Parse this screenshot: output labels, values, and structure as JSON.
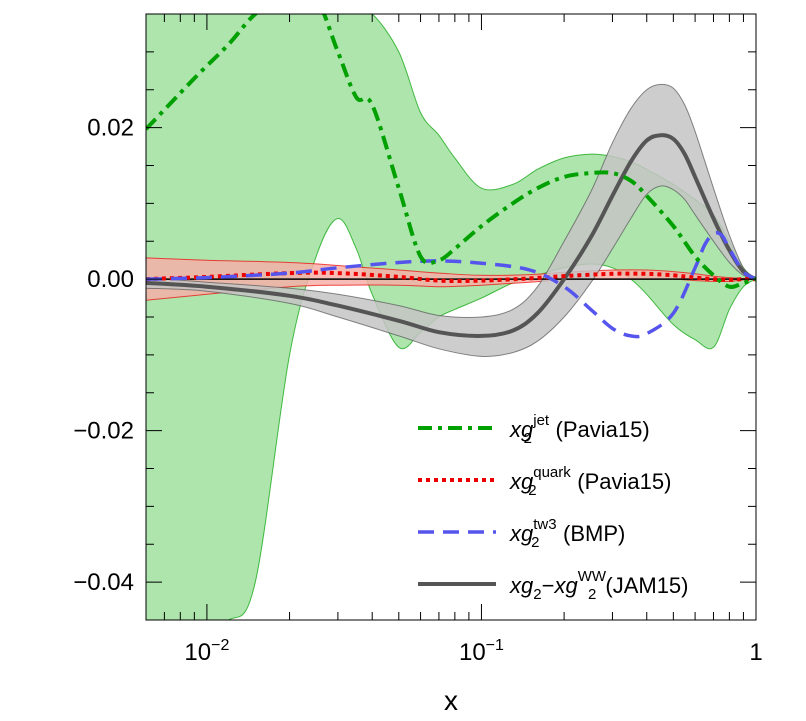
{
  "chart_data": {
    "type": "line",
    "title": "",
    "xlabel": "x",
    "ylabel": "",
    "xscale": "log",
    "xlim": [
      0.006,
      1.0
    ],
    "ylim": [
      -0.045,
      0.035
    ],
    "x_ticks": [
      {
        "value": 0.01,
        "label": "10",
        "exp": "−2"
      },
      {
        "value": 0.1,
        "label": "10",
        "exp": "−1"
      },
      {
        "value": 1.0,
        "label": "1",
        "exp": ""
      }
    ],
    "y_ticks": [
      {
        "value": 0.02,
        "label": "0.02"
      },
      {
        "value": 0.0,
        "label": "0.00"
      },
      {
        "value": -0.02,
        "label": "−0.02"
      },
      {
        "value": -0.04,
        "label": "−0.04"
      }
    ],
    "legend_position": "bottom-right",
    "series": [
      {
        "name": "jet",
        "legend_prefix": "xg",
        "legend_sub": "2",
        "legend_sup": "jet",
        "legend_suffix": " (Pavia15)",
        "color": "#00a000",
        "band_color": "#9fe09f",
        "style": "dashdot",
        "x": [
          0.006,
          0.009,
          0.012,
          0.015,
          0.02,
          0.025,
          0.03,
          0.035,
          0.04,
          0.05,
          0.06,
          0.07,
          0.08,
          0.1,
          0.13,
          0.16,
          0.2,
          0.25,
          0.3,
          0.35,
          0.4,
          0.5,
          0.6,
          0.7,
          0.8,
          0.9,
          1.0
        ],
        "y": [
          0.0198,
          0.0265,
          0.031,
          0.035,
          0.038,
          0.037,
          0.03,
          0.024,
          0.023,
          0.012,
          0.003,
          0.0025,
          0.004,
          0.007,
          0.01,
          0.012,
          0.0135,
          0.014,
          0.014,
          0.013,
          0.011,
          0.007,
          0.003,
          0.0005,
          -0.001,
          -0.0005,
          0.0
        ],
        "band_low": [
          -0.045,
          -0.045,
          -0.045,
          -0.04,
          -0.01,
          0.003,
          0.008,
          0.004,
          -0.002,
          -0.009,
          -0.007,
          -0.005,
          -0.004,
          -0.0025,
          -0.0005,
          0.0005,
          0.0015,
          0.002,
          0.0015,
          0.0,
          -0.002,
          -0.006,
          -0.008,
          -0.009,
          -0.004,
          -0.001,
          0.0
        ],
        "band_high": [
          0.035,
          0.035,
          0.035,
          0.035,
          0.035,
          0.035,
          0.035,
          0.035,
          0.035,
          0.03,
          0.022,
          0.019,
          0.016,
          0.012,
          0.0125,
          0.0145,
          0.016,
          0.0165,
          0.0162,
          0.0155,
          0.0145,
          0.0125,
          0.0105,
          0.0085,
          0.005,
          0.0015,
          0.0
        ]
      },
      {
        "name": "quark",
        "legend_prefix": "xg",
        "legend_sub": "2",
        "legend_sup": "quark",
        "legend_suffix": " (Pavia15)",
        "color": "#ee0000",
        "band_color": "#f5b0a8",
        "style": "dotted",
        "x": [
          0.006,
          0.01,
          0.02,
          0.03,
          0.05,
          0.07,
          0.1,
          0.15,
          0.2,
          0.3,
          0.4,
          0.5,
          0.6,
          0.7,
          0.8,
          0.9,
          1.0
        ],
        "y": [
          0.0,
          0.0003,
          0.0008,
          0.0008,
          0.0003,
          -0.0002,
          -0.0002,
          0.0001,
          0.0004,
          0.0007,
          0.0007,
          0.0005,
          0.0002,
          0.0,
          -0.0001,
          0.0,
          0.0
        ],
        "band_low": [
          -0.0028,
          -0.002,
          -0.001,
          -0.0008,
          -0.0008,
          -0.001,
          -0.0008,
          -0.0004,
          -0.0001,
          0.0,
          0.0,
          0.0,
          -0.0002,
          -0.0003,
          -0.0003,
          -0.0001,
          0.0
        ],
        "band_high": [
          0.0028,
          0.0025,
          0.0022,
          0.0018,
          0.0012,
          0.0008,
          0.0005,
          0.0006,
          0.0009,
          0.0012,
          0.0012,
          0.001,
          0.0007,
          0.0004,
          0.0002,
          0.0001,
          0.0
        ]
      },
      {
        "name": "tw3",
        "legend_prefix": "xg",
        "legend_sub": "2",
        "legend_sup": "tw3",
        "legend_suffix": " (BMP)",
        "color": "#5555ee",
        "style": "dashed",
        "x": [
          0.006,
          0.01,
          0.02,
          0.03,
          0.05,
          0.07,
          0.1,
          0.15,
          0.2,
          0.25,
          0.3,
          0.35,
          0.4,
          0.5,
          0.6,
          0.65,
          0.7,
          0.75,
          0.8,
          0.9,
          1.0
        ],
        "y": [
          0.0,
          0.0002,
          0.0008,
          0.0015,
          0.0022,
          0.0024,
          0.0021,
          0.0012,
          -0.001,
          -0.004,
          -0.0065,
          -0.0075,
          -0.0072,
          -0.0045,
          0.0015,
          0.0045,
          0.006,
          0.0058,
          0.004,
          0.001,
          0.0
        ]
      },
      {
        "name": "JAM15",
        "legend_prefix": "xg",
        "legend_sub": "2",
        "legend_mid": "−xg",
        "legend_mid_sub": "2",
        "legend_sup": "WW",
        "legend_suffix": "(JAM15)",
        "color": "#555555",
        "band_color": "#c4c4c4",
        "style": "solid",
        "x": [
          0.006,
          0.01,
          0.02,
          0.03,
          0.05,
          0.07,
          0.1,
          0.13,
          0.16,
          0.2,
          0.25,
          0.3,
          0.35,
          0.4,
          0.45,
          0.5,
          0.55,
          0.6,
          0.7,
          0.8,
          0.9,
          1.0
        ],
        "y": [
          -0.0005,
          -0.001,
          -0.0022,
          -0.0035,
          -0.0055,
          -0.007,
          -0.0075,
          -0.0068,
          -0.0045,
          0.0,
          0.0055,
          0.011,
          0.0155,
          0.0183,
          0.019,
          0.0185,
          0.0165,
          0.0135,
          0.008,
          0.0038,
          0.001,
          0.0
        ],
        "band_low": [
          -0.0012,
          -0.0016,
          -0.0032,
          -0.005,
          -0.0075,
          -0.0092,
          -0.0102,
          -0.0097,
          -0.0082,
          -0.005,
          -0.0005,
          0.004,
          0.008,
          0.0112,
          0.0123,
          0.0118,
          0.0105,
          0.0085,
          0.005,
          0.0022,
          0.0005,
          0.0
        ],
        "band_high": [
          0.0002,
          -0.0004,
          -0.0012,
          -0.002,
          -0.0035,
          -0.0048,
          -0.005,
          -0.004,
          -0.001,
          0.005,
          0.0115,
          0.018,
          0.0225,
          0.025,
          0.0257,
          0.0252,
          0.023,
          0.0195,
          0.012,
          0.0058,
          0.0015,
          0.0
        ]
      }
    ]
  }
}
